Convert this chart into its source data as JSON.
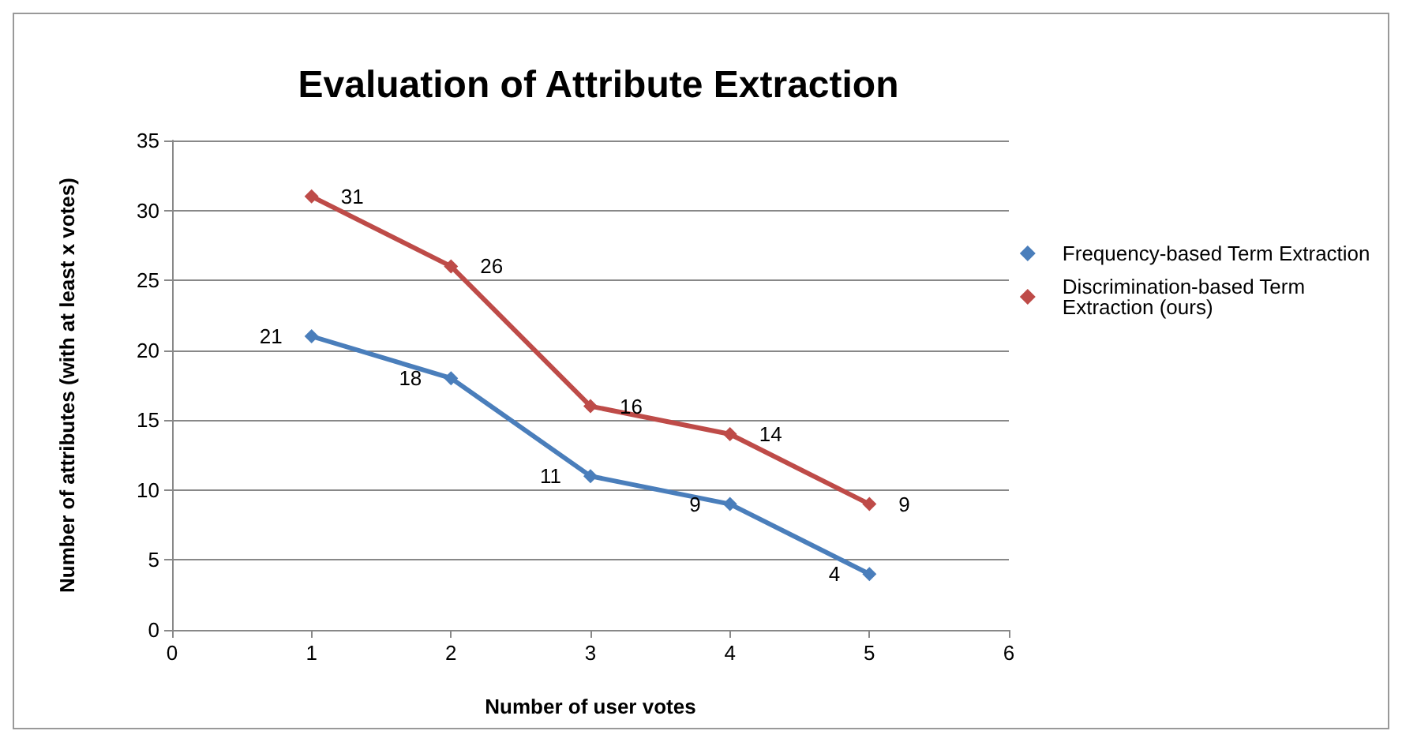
{
  "chart_data": {
    "type": "line",
    "title": "Evaluation of Attribute Extraction",
    "xlabel": "Number of user votes",
    "ylabel": "Number of attributes (with at least x votes)",
    "x": [
      1,
      2,
      3,
      4,
      5
    ],
    "series": [
      {
        "name": "Frequency-based Term Extraction",
        "color": "#4a7ebb",
        "values": [
          21,
          18,
          11,
          9,
          4
        ]
      },
      {
        "name": "Discrimination-based Term Extraction (ours)",
        "color": "#be4b48",
        "values": [
          31,
          26,
          16,
          14,
          9
        ]
      }
    ],
    "xlim": [
      0,
      6
    ],
    "xticks": [
      0,
      1,
      2,
      3,
      4,
      5,
      6
    ],
    "ylim": [
      0,
      35
    ],
    "yticks": [
      0,
      5,
      10,
      15,
      20,
      25,
      30,
      35
    ],
    "grid": "y",
    "legend": "right",
    "marker": "diamond",
    "line_style": "solid",
    "data_labels": true
  }
}
